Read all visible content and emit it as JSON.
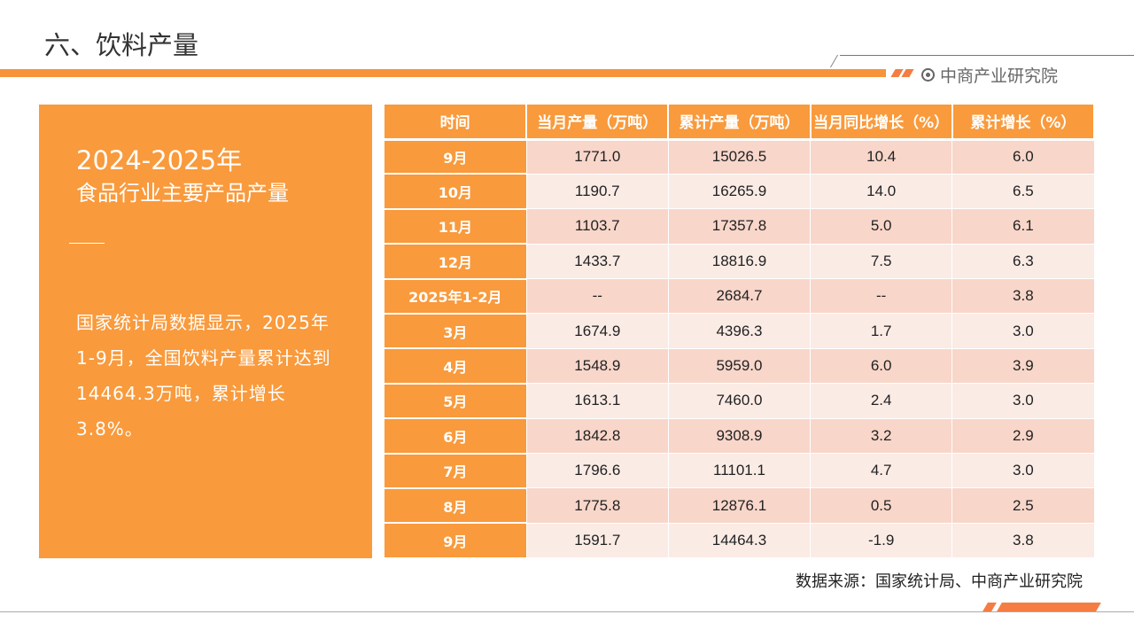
{
  "header": {
    "title": "六、饮料产量",
    "brand": "中商产业研究院",
    "brand_icon": "target-circle-icon",
    "accent": "#f99a3c"
  },
  "panel": {
    "title_line1": "2024-2025年",
    "title_line2": "食品行业主要产品产量",
    "body": "国家统计局数据显示，2025年1-9月，全国饮料产量累计达到14464.3万吨，累计增长3.8%。"
  },
  "table": {
    "columns": [
      "时间",
      "当月产量（万吨）",
      "累计产量（万吨）",
      "当月同比增长（%）",
      "累计增长（%）"
    ],
    "rows": [
      [
        "9月",
        "1771.0",
        "15026.5",
        "10.4",
        "6.0"
      ],
      [
        "10月",
        "1190.7",
        "16265.9",
        "14.0",
        "6.5"
      ],
      [
        "11月",
        "1103.7",
        "17357.8",
        "5.0",
        "6.1"
      ],
      [
        "12月",
        "1433.7",
        "18816.9",
        "7.5",
        "6.3"
      ],
      [
        "2025年1-2月",
        "--",
        "2684.7",
        "--",
        "3.8"
      ],
      [
        "3月",
        "1674.9",
        "4396.3",
        "1.7",
        "3.0"
      ],
      [
        "4月",
        "1548.9",
        "5959.0",
        "6.0",
        "3.9"
      ],
      [
        "5月",
        "1613.1",
        "7460.0",
        "2.4",
        "3.0"
      ],
      [
        "6月",
        "1842.8",
        "9308.9",
        "3.2",
        "2.9"
      ],
      [
        "7月",
        "1796.6",
        "11101.1",
        "4.7",
        "3.0"
      ],
      [
        "8月",
        "1775.8",
        "12876.1",
        "0.5",
        "2.5"
      ],
      [
        "9月",
        "1591.7",
        "14464.3",
        "-1.9",
        "3.8"
      ]
    ]
  },
  "source": "数据来源：国家统计局、中商产业研究院"
}
